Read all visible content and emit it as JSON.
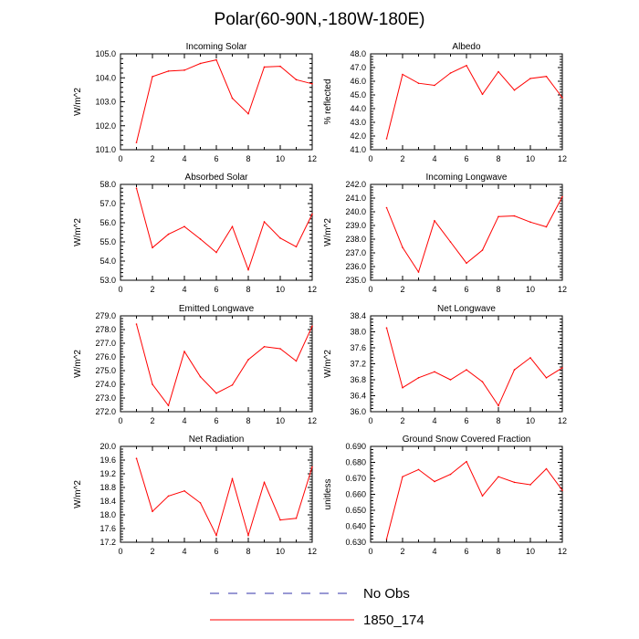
{
  "figure_title": "Polar(60-90N,-180W-180E)",
  "legend": {
    "entries": [
      {
        "label": "No Obs",
        "color": "#3333aa",
        "style": "dashed"
      },
      {
        "label": "1850_174",
        "color": "#ff0000",
        "style": "solid"
      }
    ]
  },
  "chart_data": [
    {
      "type": "line",
      "title": "Incoming Solar",
      "xlabel": "",
      "ylabel": "W/m^2",
      "xlim": [
        0,
        12
      ],
      "ylim": [
        101.0,
        105.0
      ],
      "xticks": [
        0,
        2,
        4,
        6,
        8,
        10,
        12
      ],
      "yticks": [
        101.0,
        102.0,
        103.0,
        104.0,
        105.0
      ],
      "ytick_labels": [
        "101.0",
        "102.0",
        "103.0",
        "104.0",
        "105.0"
      ],
      "x": [
        1,
        2,
        3,
        4,
        5,
        6,
        7,
        8,
        9,
        10,
        11,
        12
      ],
      "series": [
        {
          "name": "1850_174",
          "color": "#ff0000",
          "values": [
            101.3,
            104.05,
            104.28,
            104.32,
            104.6,
            104.75,
            103.15,
            102.5,
            104.45,
            104.48,
            103.92,
            103.75
          ]
        }
      ]
    },
    {
      "type": "line",
      "title": "Albedo",
      "xlabel": "",
      "ylabel": "% reflected",
      "xlim": [
        0,
        12
      ],
      "ylim": [
        41.0,
        48.0
      ],
      "xticks": [
        0,
        2,
        4,
        6,
        8,
        10,
        12
      ],
      "yticks": [
        41.0,
        42.0,
        43.0,
        44.0,
        45.0,
        46.0,
        47.0,
        48.0
      ],
      "ytick_labels": [
        "41.0",
        "42.0",
        "43.0",
        "44.0",
        "45.0",
        "46.0",
        "47.0",
        "48.0"
      ],
      "x": [
        1,
        2,
        3,
        4,
        5,
        6,
        7,
        8,
        9,
        10,
        11,
        12
      ],
      "series": [
        {
          "name": "1850_174",
          "color": "#ff0000",
          "values": [
            41.8,
            46.5,
            45.85,
            45.7,
            46.6,
            47.15,
            45.05,
            46.7,
            45.35,
            46.2,
            46.35,
            44.8
          ]
        }
      ]
    },
    {
      "type": "line",
      "title": "Absorbed Solar",
      "xlabel": "",
      "ylabel": "W/m^2",
      "xlim": [
        0,
        12
      ],
      "ylim": [
        53.0,
        58.0
      ],
      "xticks": [
        0,
        2,
        4,
        6,
        8,
        10,
        12
      ],
      "yticks": [
        53.0,
        54.0,
        55.0,
        56.0,
        57.0,
        58.0
      ],
      "ytick_labels": [
        "53.0",
        "54.0",
        "55.0",
        "56.0",
        "57.0",
        "58.0"
      ],
      "x": [
        1,
        2,
        3,
        4,
        5,
        6,
        7,
        8,
        9,
        10,
        11,
        12
      ],
      "series": [
        {
          "name": "1850_174",
          "color": "#ff0000",
          "values": [
            57.8,
            54.7,
            55.4,
            55.8,
            55.15,
            54.45,
            55.8,
            53.55,
            56.05,
            55.2,
            54.75,
            56.45
          ]
        }
      ]
    },
    {
      "type": "line",
      "title": "Incoming Longwave",
      "xlabel": "",
      "ylabel": "W/m^2",
      "xlim": [
        0,
        12
      ],
      "ylim": [
        235.0,
        242.0
      ],
      "xticks": [
        0,
        2,
        4,
        6,
        8,
        10,
        12
      ],
      "yticks": [
        235.0,
        236.0,
        237.0,
        238.0,
        239.0,
        240.0,
        241.0,
        242.0
      ],
      "ytick_labels": [
        "235.0",
        "236.0",
        "237.0",
        "238.0",
        "239.0",
        "240.0",
        "241.0",
        "242.0"
      ],
      "x": [
        1,
        2,
        3,
        4,
        5,
        6,
        7,
        8,
        9,
        10,
        11,
        12
      ],
      "series": [
        {
          "name": "1850_174",
          "color": "#ff0000",
          "values": [
            240.3,
            237.4,
            235.6,
            239.35,
            237.8,
            236.25,
            237.2,
            239.65,
            239.7,
            239.25,
            238.9,
            241.1
          ]
        }
      ]
    },
    {
      "type": "line",
      "title": "Emitted Longwave",
      "xlabel": "",
      "ylabel": "W/m^2",
      "xlim": [
        0,
        12
      ],
      "ylim": [
        272.0,
        279.0
      ],
      "xticks": [
        0,
        2,
        4,
        6,
        8,
        10,
        12
      ],
      "yticks": [
        272.0,
        273.0,
        274.0,
        275.0,
        276.0,
        277.0,
        278.0,
        279.0
      ],
      "ytick_labels": [
        "272.0",
        "273.0",
        "274.0",
        "275.0",
        "276.0",
        "277.0",
        "278.0",
        "279.0"
      ],
      "x": [
        1,
        2,
        3,
        4,
        5,
        6,
        7,
        8,
        9,
        10,
        11,
        12
      ],
      "series": [
        {
          "name": "1850_174",
          "color": "#ff0000",
          "values": [
            278.4,
            274.0,
            272.45,
            276.4,
            274.55,
            273.35,
            273.95,
            275.8,
            276.75,
            276.6,
            275.7,
            278.25
          ]
        }
      ]
    },
    {
      "type": "line",
      "title": "Net Longwave",
      "xlabel": "",
      "ylabel": "W/m^2",
      "xlim": [
        0,
        12
      ],
      "ylim": [
        36.0,
        38.4
      ],
      "xticks": [
        0,
        2,
        4,
        6,
        8,
        10,
        12
      ],
      "yticks": [
        36.0,
        36.4,
        36.8,
        37.2,
        37.6,
        38.0,
        38.4
      ],
      "ytick_labels": [
        "36.0",
        "36.4",
        "36.8",
        "37.2",
        "37.6",
        "38.0",
        "38.4"
      ],
      "x": [
        1,
        2,
        3,
        4,
        5,
        6,
        7,
        8,
        9,
        10,
        11,
        12
      ],
      "series": [
        {
          "name": "1850_174",
          "color": "#ff0000",
          "values": [
            38.1,
            36.6,
            36.85,
            37.0,
            36.8,
            37.05,
            36.75,
            36.15,
            37.05,
            37.35,
            36.85,
            37.1
          ]
        }
      ]
    },
    {
      "type": "line",
      "title": "Net Radiation",
      "xlabel": "",
      "ylabel": "W/m^2",
      "xlim": [
        0,
        12
      ],
      "ylim": [
        17.2,
        20.0
      ],
      "xticks": [
        0,
        2,
        4,
        6,
        8,
        10,
        12
      ],
      "yticks": [
        17.2,
        17.6,
        18.0,
        18.4,
        18.8,
        19.2,
        19.6,
        20.0
      ],
      "ytick_labels": [
        "17.2",
        "17.6",
        "18.0",
        "18.4",
        "18.8",
        "19.2",
        "19.6",
        "20.0"
      ],
      "x": [
        1,
        2,
        3,
        4,
        5,
        6,
        7,
        8,
        9,
        10,
        11,
        12
      ],
      "series": [
        {
          "name": "1850_174",
          "color": "#ff0000",
          "values": [
            19.65,
            18.1,
            18.55,
            18.7,
            18.35,
            17.4,
            19.05,
            17.4,
            18.95,
            17.85,
            17.9,
            19.4
          ]
        }
      ]
    },
    {
      "type": "line",
      "title": "Ground Snow Covered Fraction",
      "xlabel": "",
      "ylabel": "unitless",
      "xlim": [
        0,
        12
      ],
      "ylim": [
        0.63,
        0.69
      ],
      "xticks": [
        0,
        2,
        4,
        6,
        8,
        10,
        12
      ],
      "yticks": [
        0.63,
        0.64,
        0.65,
        0.66,
        0.67,
        0.68,
        0.69
      ],
      "ytick_labels": [
        "0.630",
        "0.640",
        "0.650",
        "0.660",
        "0.670",
        "0.680",
        "0.690"
      ],
      "x": [
        1,
        2,
        3,
        4,
        5,
        6,
        7,
        8,
        9,
        10,
        11,
        12
      ],
      "series": [
        {
          "name": "1850_174",
          "color": "#ff0000",
          "values": [
            0.632,
            0.671,
            0.6755,
            0.668,
            0.6725,
            0.6805,
            0.659,
            0.671,
            0.6675,
            0.666,
            0.676,
            0.6625
          ]
        }
      ]
    }
  ]
}
